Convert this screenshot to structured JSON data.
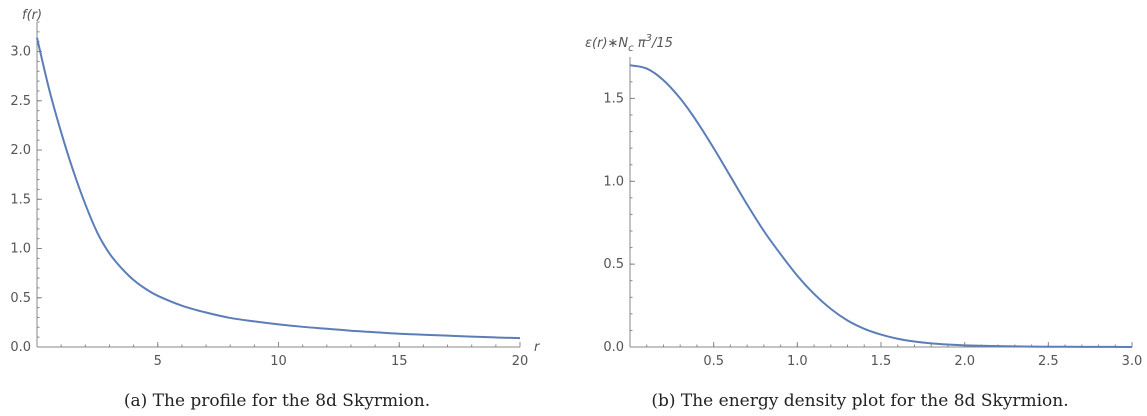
{
  "figure": {
    "caption_left": "(a)  The profile for the 8d Skyrmion.",
    "caption_right": "(b)  The energy density plot for the 8d Skyrmion."
  },
  "colors": {
    "curve": "#5b7db8",
    "axis": "#888888",
    "text": "#555555"
  },
  "chart_data": [
    {
      "type": "line",
      "title": "",
      "xlabel": "r",
      "ylabel": "f(r)",
      "xlim": [
        0,
        20
      ],
      "ylim": [
        0,
        3.3
      ],
      "x_ticks": [
        5,
        10,
        15,
        20
      ],
      "x_tick_labels": [
        "5",
        "10",
        "15",
        "20"
      ],
      "y_ticks": [
        0,
        0.5,
        1,
        1.5,
        2,
        2.5,
        3
      ],
      "y_tick_labels": [
        "0.0",
        "0.5",
        "1.0",
        "1.5",
        "2.0",
        "2.5",
        "3.0"
      ],
      "grid": false,
      "series": [
        {
          "x": [
            0,
            0.5,
            1,
            1.5,
            2,
            2.5,
            3,
            3.5,
            4,
            4.5,
            5,
            6,
            7,
            8,
            9,
            10,
            11,
            12,
            13,
            14,
            15,
            16,
            17,
            18,
            19,
            20
          ],
          "values": [
            3.14,
            2.62,
            2.18,
            1.79,
            1.45,
            1.16,
            0.95,
            0.8,
            0.68,
            0.59,
            0.52,
            0.42,
            0.35,
            0.295,
            0.26,
            0.23,
            0.205,
            0.185,
            0.165,
            0.15,
            0.135,
            0.125,
            0.115,
            0.105,
            0.097,
            0.09
          ]
        }
      ]
    },
    {
      "type": "line",
      "title": "",
      "xlabel": "",
      "ylabel_main": "ε(r)∗N",
      "ylabel_sub": "c",
      "ylabel_pi": " π",
      "ylabel_sup": "3",
      "ylabel_tail": "/15",
      "xlim": [
        0,
        3
      ],
      "ylim": [
        0,
        1.75
      ],
      "x_ticks": [
        0.5,
        1,
        1.5,
        2,
        2.5,
        3
      ],
      "x_tick_labels": [
        "0.5",
        "1.0",
        "1.5",
        "2.0",
        "2.5",
        "3.0"
      ],
      "y_ticks": [
        0,
        0.5,
        1,
        1.5
      ],
      "y_tick_labels": [
        "0.0",
        "0.5",
        "1.0",
        "1.5"
      ],
      "grid": false,
      "series": [
        {
          "x": [
            0,
            0.1,
            0.2,
            0.3,
            0.4,
            0.5,
            0.6,
            0.7,
            0.8,
            0.9,
            1.0,
            1.1,
            1.2,
            1.3,
            1.4,
            1.5,
            1.6,
            1.7,
            1.8,
            1.9,
            2.0,
            2.2,
            2.4,
            2.6,
            2.8,
            3.0
          ],
          "values": [
            1.7,
            1.68,
            1.61,
            1.5,
            1.36,
            1.2,
            1.03,
            0.86,
            0.7,
            0.56,
            0.43,
            0.32,
            0.23,
            0.16,
            0.11,
            0.075,
            0.05,
            0.033,
            0.022,
            0.015,
            0.01,
            0.005,
            0.0025,
            0.0012,
            0.0006,
            0.0003
          ]
        }
      ]
    }
  ]
}
